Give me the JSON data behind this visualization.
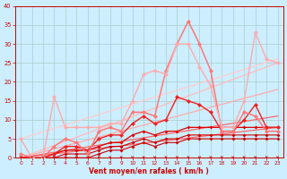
{
  "background_color": "#cceeff",
  "grid_color": "#aacccc",
  "xlabel": "Vent moyen/en rafales ( km/h )",
  "xlabel_color": "#cc0000",
  "tick_color": "#cc0000",
  "axis_color": "#cc0000",
  "xmin": 0,
  "xmax": 23,
  "ymin": 0,
  "ymax": 40,
  "yticks": [
    0,
    5,
    10,
    15,
    20,
    25,
    30,
    35,
    40
  ],
  "straight_lines": [
    {
      "x0": 0,
      "y0": 0,
      "x1": 23,
      "y1": 8,
      "color": "#ff6666",
      "lw": 0.9
    },
    {
      "x0": 0,
      "y0": 0,
      "x1": 23,
      "y1": 11,
      "color": "#ff6666",
      "lw": 0.9
    },
    {
      "x0": 0,
      "y0": 0,
      "x1": 23,
      "y1": 18,
      "color": "#ffaaaa",
      "lw": 0.9
    },
    {
      "x0": 0,
      "y0": 0,
      "x1": 23,
      "y1": 25,
      "color": "#ffbbbb",
      "lw": 0.9
    },
    {
      "x0": 0,
      "y0": 5,
      "x1": 23,
      "y1": 26,
      "color": "#ffcccc",
      "lw": 0.9
    }
  ],
  "zigzag_lines": [
    {
      "x": [
        0,
        1,
        2,
        3,
        4,
        5,
        6,
        7,
        8,
        9,
        10,
        11,
        12,
        13,
        14,
        15,
        16,
        17,
        18,
        19,
        20,
        21,
        22,
        23
      ],
      "y": [
        0,
        0,
        0,
        0,
        0,
        0,
        0,
        1,
        2,
        2,
        3,
        4,
        3,
        4,
        4,
        5,
        5,
        5,
        5,
        5,
        5,
        5,
        5,
        5
      ],
      "color": "#cc0000",
      "lw": 0.8,
      "ms": 2.0
    },
    {
      "x": [
        0,
        1,
        2,
        3,
        4,
        5,
        6,
        7,
        8,
        9,
        10,
        11,
        12,
        13,
        14,
        15,
        16,
        17,
        18,
        19,
        20,
        21,
        22,
        23
      ],
      "y": [
        0,
        0,
        0,
        0,
        1,
        1,
        1,
        2,
        3,
        3,
        4,
        5,
        4,
        5,
        5,
        6,
        6,
        6,
        6,
        6,
        6,
        6,
        6,
        6
      ],
      "color": "#cc0000",
      "lw": 0.8,
      "ms": 2.0
    },
    {
      "x": [
        0,
        1,
        2,
        3,
        4,
        5,
        6,
        7,
        8,
        9,
        10,
        11,
        12,
        13,
        14,
        15,
        16,
        17,
        18,
        19,
        20,
        21,
        22,
        23
      ],
      "y": [
        0,
        0,
        0,
        1,
        2,
        2,
        2,
        3,
        4,
        4,
        6,
        7,
        6,
        7,
        7,
        8,
        8,
        8,
        8,
        8,
        8,
        8,
        8,
        8
      ],
      "color": "#dd0000",
      "lw": 0.9,
      "ms": 2.0
    },
    {
      "x": [
        0,
        1,
        2,
        3,
        4,
        5,
        6,
        7,
        8,
        9,
        10,
        11,
        12,
        13,
        14,
        15,
        16,
        17,
        18,
        19,
        20,
        21,
        22,
        23
      ],
      "y": [
        0,
        0,
        0,
        1,
        3,
        3,
        2,
        5,
        6,
        6,
        9,
        11,
        9,
        10,
        16,
        15,
        14,
        12,
        7,
        7,
        10,
        14,
        8,
        8
      ],
      "color": "#ee2222",
      "lw": 1.0,
      "ms": 2.5
    },
    {
      "x": [
        0,
        1,
        2,
        3,
        4,
        5,
        6,
        7,
        8,
        9,
        10,
        11,
        12,
        13,
        14,
        15,
        16,
        17,
        18,
        19,
        20,
        21,
        22,
        23
      ],
      "y": [
        1,
        0,
        0,
        3,
        5,
        4,
        1,
        7,
        8,
        7,
        12,
        12,
        11,
        23,
        30,
        36,
        30,
        23,
        7,
        7,
        12,
        11,
        7,
        7
      ],
      "color": "#ff7777",
      "lw": 1.1,
      "ms": 2.5
    },
    {
      "x": [
        0,
        1,
        2,
        3,
        4,
        5,
        6,
        7,
        8,
        9,
        10,
        11,
        12,
        13,
        14,
        15,
        16,
        17,
        18,
        19,
        20,
        21,
        22,
        23
      ],
      "y": [
        5,
        0,
        0,
        16,
        8,
        8,
        8,
        8,
        9,
        9,
        15,
        22,
        23,
        22,
        30,
        30,
        24,
        19,
        8,
        8,
        15,
        33,
        26,
        25
      ],
      "color": "#ffaaaa",
      "lw": 1.0,
      "ms": 2.5
    }
  ],
  "wind_directions": [
    3,
    1,
    1,
    4,
    4,
    4,
    4,
    4,
    1,
    4,
    4,
    1,
    4,
    4,
    1,
    4,
    4,
    4,
    4,
    4,
    4,
    4,
    4,
    4
  ]
}
